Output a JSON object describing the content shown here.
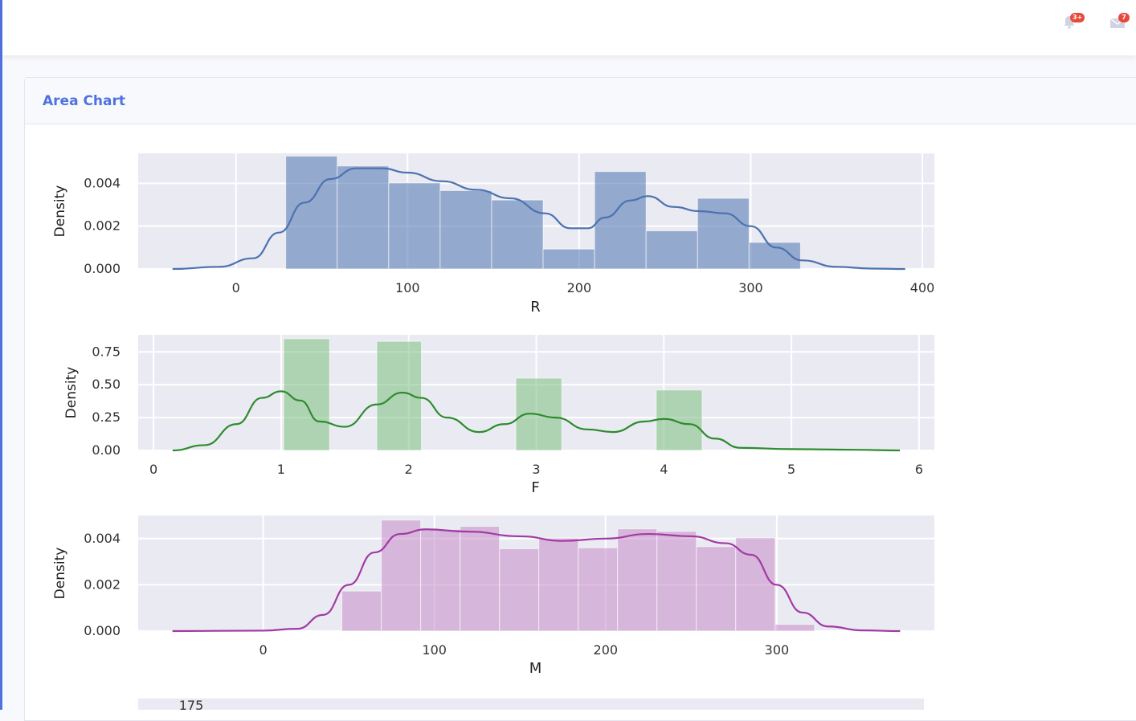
{
  "header": {
    "notifications": {
      "icon": "bell-icon",
      "badge": "3+"
    },
    "messages": {
      "icon": "envelope-icon",
      "badge": "7"
    }
  },
  "card": {
    "title": "Area Chart"
  },
  "chart_data": [
    {
      "type": "bar",
      "subtype": "histogram-with-kde",
      "color": "#4c72b0",
      "xlabel": "R",
      "ylabel": "Density",
      "xlim": [
        -57,
        407
      ],
      "ylim": [
        0,
        0.0054
      ],
      "xticks": [
        0,
        100,
        200,
        300,
        400
      ],
      "yticks": [
        0.0,
        0.002,
        0.004
      ],
      "ytick_labels": [
        "0.000",
        "0.002",
        "0.004"
      ],
      "bins": [
        [
          29,
          59,
          0.00527
        ],
        [
          59,
          89,
          0.00481
        ],
        [
          89,
          119,
          0.00402
        ],
        [
          119,
          149,
          0.00366
        ],
        [
          149,
          179,
          0.00322
        ],
        [
          179,
          209,
          0.00093
        ],
        [
          209,
          239,
          0.00455
        ],
        [
          239,
          269,
          0.00178
        ],
        [
          269,
          299,
          0.0033
        ],
        [
          299,
          329,
          0.00124
        ]
      ],
      "kde": [
        [
          -37,
          0
        ],
        [
          -10,
          0.0001
        ],
        [
          10,
          0.0005
        ],
        [
          25,
          0.0017
        ],
        [
          40,
          0.0031
        ],
        [
          55,
          0.0042
        ],
        [
          70,
          0.0047
        ],
        [
          85,
          0.0047
        ],
        [
          100,
          0.0045
        ],
        [
          120,
          0.0041
        ],
        [
          140,
          0.0037
        ],
        [
          160,
          0.0033
        ],
        [
          180,
          0.0026
        ],
        [
          195,
          0.0019
        ],
        [
          205,
          0.0019
        ],
        [
          215,
          0.0024
        ],
        [
          230,
          0.0032
        ],
        [
          240,
          0.0034
        ],
        [
          255,
          0.0029
        ],
        [
          270,
          0.0027
        ],
        [
          285,
          0.0026
        ],
        [
          300,
          0.002
        ],
        [
          315,
          0.001
        ],
        [
          330,
          0.0004
        ],
        [
          350,
          0.0001
        ],
        [
          370,
          2e-05
        ],
        [
          390,
          0
        ]
      ]
    },
    {
      "type": "bar",
      "subtype": "histogram-with-kde",
      "color": "#55a868",
      "bar_color": "#7bbf7f",
      "line_color": "#2e8b2e",
      "xlabel": "F",
      "ylabel": "Density",
      "xlim": [
        -0.12,
        6.12
      ],
      "ylim": [
        0,
        0.88
      ],
      "xticks": [
        0,
        1,
        2,
        3,
        4,
        5,
        6
      ],
      "yticks": [
        0.0,
        0.25,
        0.5,
        0.75
      ],
      "ytick_labels": [
        "0.00",
        "0.25",
        "0.50",
        "0.75"
      ],
      "bins": [
        [
          1.02,
          1.38,
          0.85
        ],
        [
          1.75,
          2.1,
          0.83
        ],
        [
          2.84,
          3.2,
          0.55
        ],
        [
          3.94,
          4.3,
          0.46
        ]
      ],
      "kde": [
        [
          0.15,
          0
        ],
        [
          0.4,
          0.04
        ],
        [
          0.65,
          0.2
        ],
        [
          0.85,
          0.4
        ],
        [
          1.0,
          0.45
        ],
        [
          1.15,
          0.38
        ],
        [
          1.3,
          0.22
        ],
        [
          1.5,
          0.18
        ],
        [
          1.75,
          0.35
        ],
        [
          1.95,
          0.44
        ],
        [
          2.1,
          0.4
        ],
        [
          2.3,
          0.25
        ],
        [
          2.55,
          0.14
        ],
        [
          2.75,
          0.2
        ],
        [
          2.95,
          0.28
        ],
        [
          3.15,
          0.25
        ],
        [
          3.4,
          0.16
        ],
        [
          3.6,
          0.14
        ],
        [
          3.85,
          0.22
        ],
        [
          4.0,
          0.24
        ],
        [
          4.2,
          0.2
        ],
        [
          4.4,
          0.09
        ],
        [
          4.6,
          0.02
        ],
        [
          5.0,
          0.01
        ],
        [
          5.5,
          0.005
        ],
        [
          5.85,
          0
        ]
      ]
    },
    {
      "type": "bar",
      "subtype": "histogram-with-kde",
      "color": "#c47fc4",
      "bar_color": "#c68ac8",
      "line_color": "#a23aa3",
      "xlabel": "M",
      "ylabel": "Density",
      "xlim": [
        -73,
        392
      ],
      "ylim": [
        0,
        0.005
      ],
      "xticks": [
        0,
        100,
        200,
        300
      ],
      "yticks": [
        0.0,
        0.002,
        0.004
      ],
      "ytick_labels": [
        "0.000",
        "0.002",
        "0.004"
      ],
      "bins": [
        [
          46,
          69,
          0.00173
        ],
        [
          69,
          92,
          0.0048
        ],
        [
          92,
          115,
          0.0044
        ],
        [
          115,
          138,
          0.00453
        ],
        [
          138,
          161,
          0.00356
        ],
        [
          161,
          184,
          0.00402
        ],
        [
          184,
          207,
          0.0036
        ],
        [
          207,
          230,
          0.00442
        ],
        [
          230,
          253,
          0.00431
        ],
        [
          253,
          276,
          0.00365
        ],
        [
          276,
          299,
          0.00404
        ],
        [
          299,
          322,
          0.00029
        ]
      ],
      "kde": [
        [
          -53,
          0
        ],
        [
          0,
          2e-05
        ],
        [
          20,
          0.0001
        ],
        [
          35,
          0.0007
        ],
        [
          50,
          0.002
        ],
        [
          65,
          0.0034
        ],
        [
          80,
          0.0042
        ],
        [
          95,
          0.0044
        ],
        [
          120,
          0.0043
        ],
        [
          150,
          0.0041
        ],
        [
          175,
          0.0039
        ],
        [
          200,
          0.004
        ],
        [
          225,
          0.0042
        ],
        [
          250,
          0.0041
        ],
        [
          270,
          0.0038
        ],
        [
          285,
          0.0033
        ],
        [
          300,
          0.002
        ],
        [
          315,
          0.0008
        ],
        [
          330,
          0.0002
        ],
        [
          350,
          3e-05
        ],
        [
          372,
          0
        ]
      ]
    }
  ],
  "partial_chart": {
    "ytick_visible": "175"
  }
}
